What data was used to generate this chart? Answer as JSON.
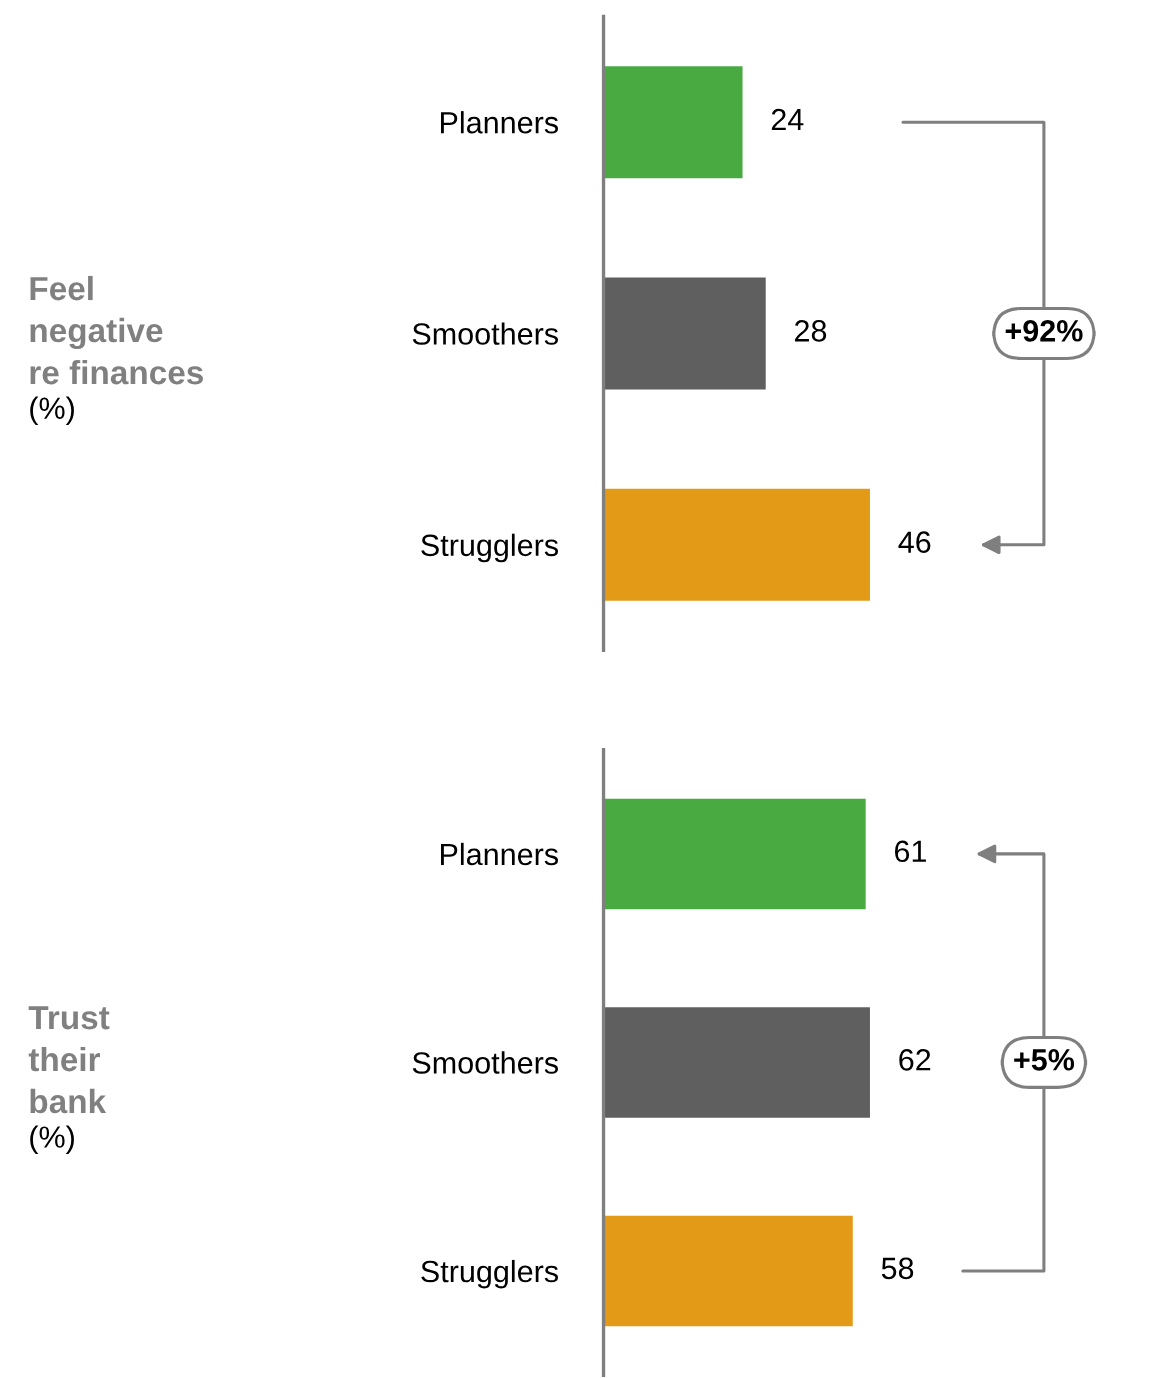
{
  "chart_data": [
    {
      "type": "bar",
      "orientation": "horizontal",
      "ylabel": "Feel\nnegative\nre finances",
      "categories": [
        "Planners",
        "Smoothers",
        "Strugglers"
      ],
      "values": [
        24,
        28,
        46
      ],
      "colors": [
        "#4aaa42",
        "#5f5f5f",
        "#e39a17"
      ],
      "data_labels": true,
      "grid": false,
      "legend": false,
      "tick_labels": "y",
      "annotations": [
        "(%)",
        "+92%"
      ]
    },
    {
      "type": "bar",
      "orientation": "horizontal",
      "ylabel": "Trust\ntheir\nbank",
      "categories": [
        "Planners",
        "Smoothers",
        "Strugglers"
      ],
      "values": [
        61,
        62,
        58
      ],
      "colors": [
        "#4aaa42",
        "#5f5f5f",
        "#e39a17"
      ],
      "data_labels": true,
      "grid": false,
      "legend": false,
      "tick_labels": "y",
      "annotations": [
        "(%)",
        "+5%"
      ]
    }
  ]
}
